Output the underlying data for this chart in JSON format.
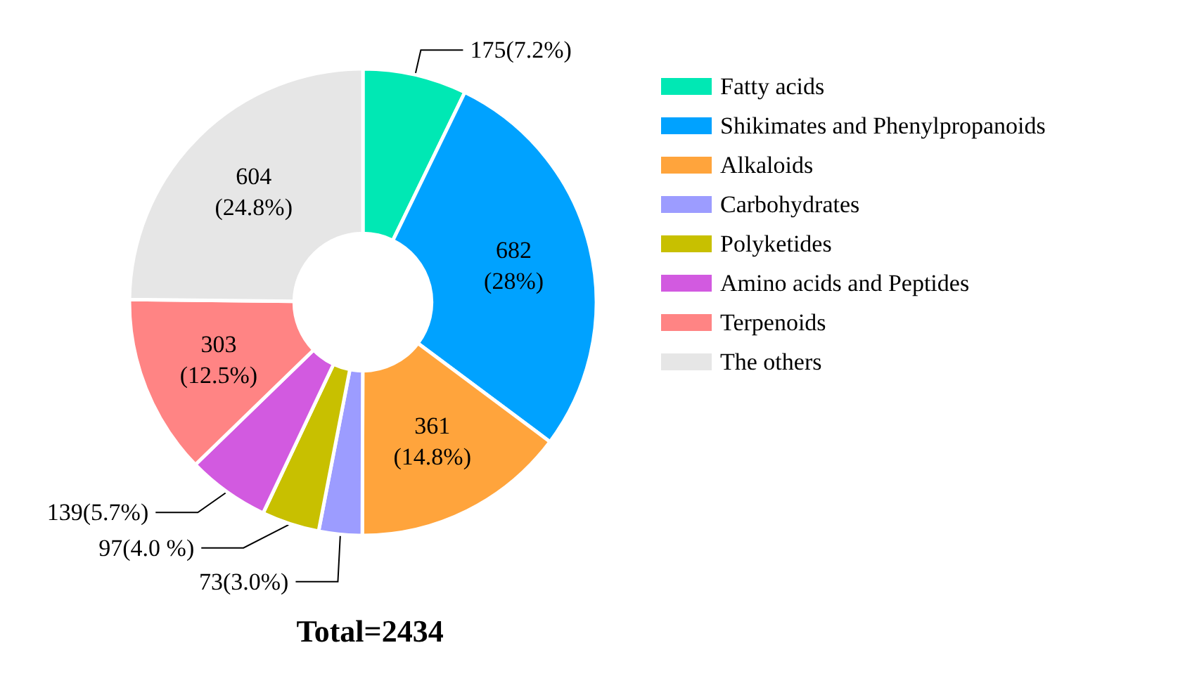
{
  "chart_data": {
    "type": "donut",
    "title": "Total=2434",
    "categories": [
      "Fatty acids",
      "Shikimates and Phenylpropanoids",
      "Alkaloids",
      "Carbohydrates",
      "Polyketides",
      "Amino acids and Peptides",
      "Terpenoids",
      "The others"
    ],
    "values": [
      175,
      682,
      361,
      73,
      97,
      139,
      303,
      604
    ],
    "colors": [
      "#00e8b4",
      "#00a2ff",
      "#ffa43c",
      "#9c9cff",
      "#c8c000",
      "#d25ae0",
      "#ff8484",
      "#e6e6e6"
    ],
    "value_labels": [
      "175(7.2%)",
      "682\n(28%)",
      "361\n(14.8%)",
      "73(3.0%)",
      "97(4.0 %)",
      "139(5.7%)",
      "303\n(12.5%)",
      "604\n(24.8%)"
    ],
    "legend": "right"
  }
}
